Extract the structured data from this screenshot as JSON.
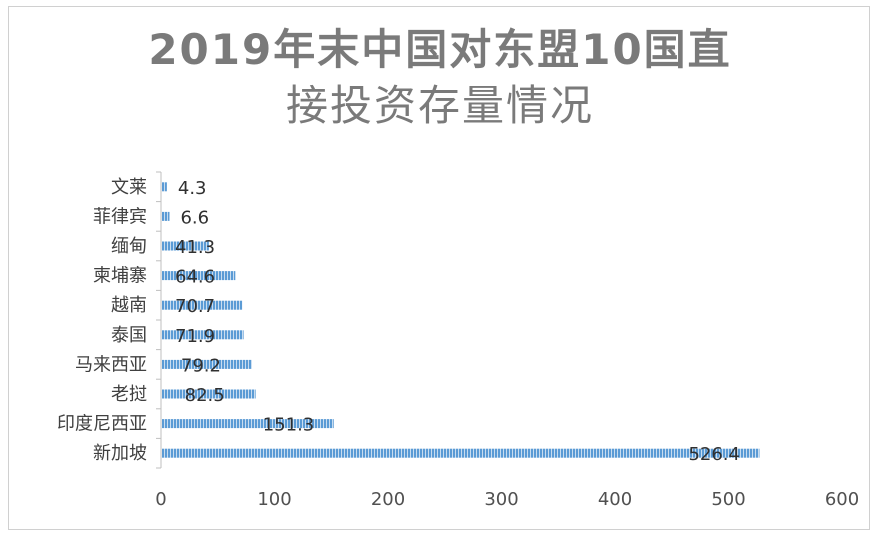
{
  "chart_data": {
    "type": "bar",
    "orientation": "horizontal",
    "title_line1": "2019年末中国对东盟10国直",
    "title_line2": "接投资存量情况",
    "categories": [
      "新加坡",
      "印度尼西亚",
      "老挝",
      "马来西亚",
      "泰国",
      "越南",
      "柬埔寨",
      "缅甸",
      "菲律宾",
      "文莱"
    ],
    "values": [
      526.4,
      151.3,
      82.5,
      79.2,
      71.9,
      70.7,
      64.6,
      41.3,
      6.6,
      4.3
    ],
    "value_labels": [
      "526.4",
      "151.3",
      "82.5",
      "79.2",
      "71.9",
      "70.7",
      "64.6",
      "41.3",
      "6.6",
      "4.3"
    ],
    "xlim": [
      0,
      600
    ],
    "xticks": [
      "0",
      "100",
      "200",
      "300",
      "400",
      "500",
      "600"
    ],
    "bar_color": "#5b9bd5",
    "grid": false
  }
}
